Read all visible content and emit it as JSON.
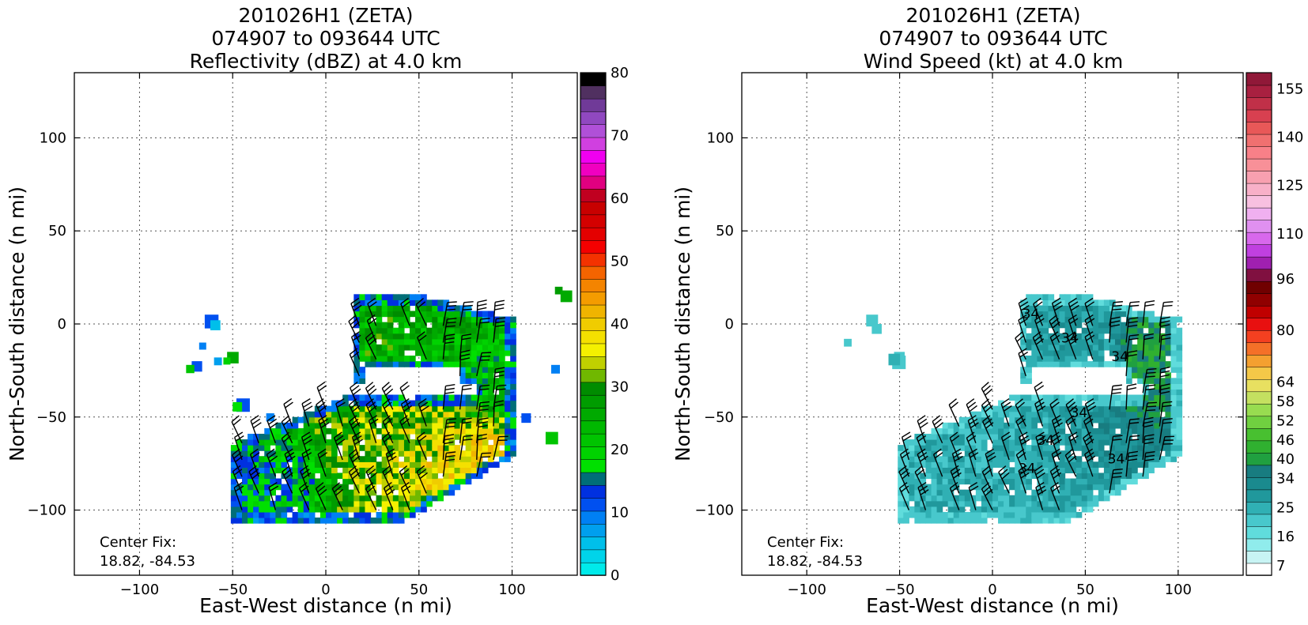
{
  "chart_data": [
    {
      "type": "heatmap",
      "title_lines": [
        "201026H1 (ZETA)",
        "074907 to 093644 UTC",
        "Reflectivity (dBZ) at 4.0 km"
      ],
      "xlabel": "East-West distance (n mi)",
      "ylabel": "North-South distance (n mi)",
      "xlim": [
        -135,
        135
      ],
      "ylim": [
        -135,
        135
      ],
      "xticks": [
        -100,
        -50,
        0,
        50,
        100
      ],
      "yticks": [
        -100,
        -50,
        0,
        50,
        100
      ],
      "grid": true,
      "annotation": [
        "Center Fix:",
        "18.82, -84.53"
      ],
      "colorbar": {
        "min": 0,
        "max": 80,
        "ticks": [
          0,
          10,
          20,
          30,
          40,
          50,
          60,
          70,
          80
        ],
        "colors": [
          "#00eaea",
          "#00d4ea",
          "#00bfea",
          "#009fee",
          "#0080f4",
          "#0050f0",
          "#0030e0",
          "#006e78",
          "#00e000",
          "#00d200",
          "#00c400",
          "#00b800",
          "#00aa00",
          "#009c00",
          "#008c00",
          "#70b800",
          "#c0d000",
          "#f4f000",
          "#f4e000",
          "#f0cc00",
          "#f0b400",
          "#f49c00",
          "#f48400",
          "#f46400",
          "#f43200",
          "#f40000",
          "#e40000",
          "#d40000",
          "#c80000",
          "#c00020",
          "#e00080",
          "#f000c0",
          "#f000f0",
          "#d040e0",
          "#b050d8",
          "#9048c0",
          "#703a98",
          "#503060",
          "#000000"
        ]
      },
      "echo_regions": [
        {
          "cx": 58,
          "cy": -70,
          "rx": 38,
          "ry": 20,
          "value": 40
        },
        {
          "cx": 35,
          "cy": -65,
          "rx": 45,
          "ry": 25,
          "value": 30
        },
        {
          "cx": 45,
          "cy": -10,
          "rx": 22,
          "ry": 18,
          "value": 25
        },
        {
          "cx": 85,
          "cy": -35,
          "rx": 12,
          "ry": 15,
          "value": 20
        },
        {
          "cx": -25,
          "cy": -80,
          "rx": 20,
          "ry": 15,
          "value": 15
        }
      ]
    },
    {
      "type": "heatmap",
      "title_lines": [
        "201026H1 (ZETA)",
        "074907 to 093644 UTC",
        "Wind Speed (kt) at 4.0 km"
      ],
      "xlabel": "East-West distance (n mi)",
      "ylabel": "North-South distance (n mi)",
      "xlim": [
        -135,
        135
      ],
      "ylim": [
        -135,
        135
      ],
      "xticks": [
        -100,
        -50,
        0,
        50,
        100
      ],
      "yticks": [
        -100,
        -50,
        0,
        50,
        100
      ],
      "grid": true,
      "annotation": [
        "Center Fix:",
        "18.82, -84.53"
      ],
      "contour_labels": [
        "34",
        "34",
        "34",
        "34",
        "34",
        "34",
        "34"
      ],
      "colorbar": {
        "min": 4,
        "max": 160,
        "ticks": [
          7,
          16,
          25,
          34,
          40,
          46,
          52,
          58,
          64,
          80,
          96,
          110,
          125,
          140,
          155
        ],
        "colors": [
          "#ffffff",
          "#c8f4f4",
          "#90ecec",
          "#60dcdc",
          "#48c8cc",
          "#30b0b4",
          "#20989c",
          "#1a8a8e",
          "#187c80",
          "#20a040",
          "#30b030",
          "#48c030",
          "#70d040",
          "#98dc50",
          "#c4e060",
          "#e8e060",
          "#f4c848",
          "#f4a030",
          "#f47028",
          "#f44020",
          "#e81010",
          "#c00000",
          "#900000",
          "#700000",
          "#801040",
          "#a020b0",
          "#c040e0",
          "#d868ec",
          "#e090f0",
          "#f0b0f0",
          "#f8c0e0",
          "#f8b0c8",
          "#f8a0b0",
          "#f89098",
          "#f88088",
          "#f07070",
          "#e85858",
          "#d84050",
          "#c03048",
          "#a82040",
          "#901838"
        ]
      },
      "wind_regions": [
        {
          "cx": 60,
          "cy": -68,
          "rx": 30,
          "ry": 18,
          "value": 34
        },
        {
          "cx": 20,
          "cy": -70,
          "rx": 45,
          "ry": 25,
          "value": 25
        },
        {
          "cx": 80,
          "cy": -35,
          "rx": 15,
          "ry": 20,
          "value": 40
        },
        {
          "cx": 40,
          "cy": -15,
          "rx": 20,
          "ry": 15,
          "value": 28
        }
      ]
    }
  ]
}
